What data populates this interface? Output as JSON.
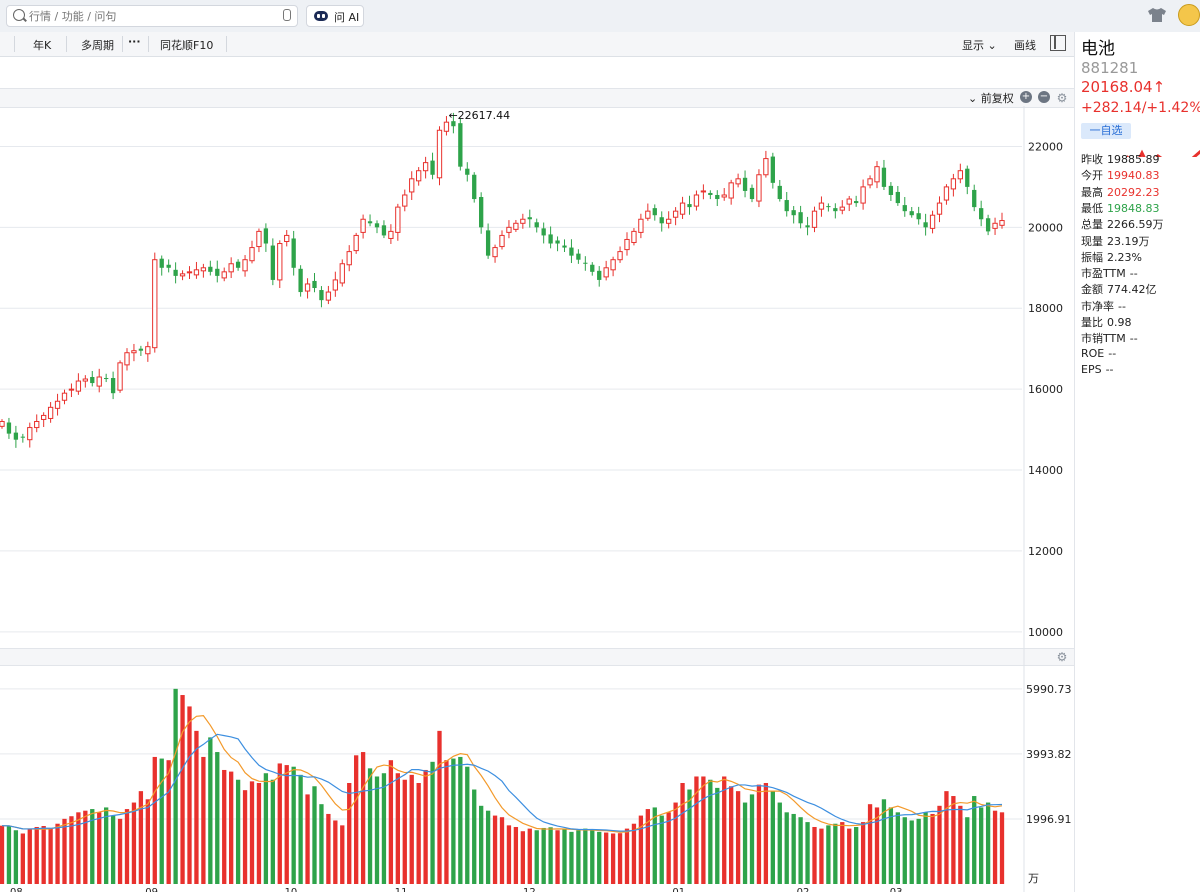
{
  "search": {
    "placeholder": "行情 / 功能 / 问句"
  },
  "ai_button": {
    "label": "问 AI"
  },
  "toolbar": {
    "items": [
      "年K",
      "多周期",
      "同花顺F10"
    ],
    "display_label": "显示",
    "draw_label": "画线"
  },
  "chart_header": {
    "adjust_label": "前复权"
  },
  "stock": {
    "name": "电池",
    "code": "881281",
    "price": "20168.04↑",
    "change": "+282.14/+1.42%",
    "favorite_label": "一自选"
  },
  "quote_rows": [
    {
      "label": "昨收",
      "value": "19885.89",
      "tone": "black"
    },
    {
      "label": "今开",
      "value": "19940.83",
      "tone": "red"
    },
    {
      "label": "最高",
      "value": "20292.23",
      "tone": "red"
    },
    {
      "label": "最低",
      "value": "19848.83",
      "tone": "green"
    },
    {
      "label": "总量",
      "value": "2266.59万",
      "tone": "black"
    },
    {
      "label": "现量",
      "value": "23.19万",
      "tone": "black"
    },
    {
      "label": "振幅",
      "value": "2.23%",
      "tone": "black"
    },
    {
      "label": "市盈TTM",
      "value": "--",
      "tone": "black"
    },
    {
      "label": "金额",
      "value": "774.42亿",
      "tone": "black"
    },
    {
      "label": "市净率",
      "value": "--",
      "tone": "black"
    },
    {
      "label": "量比",
      "value": "0.98",
      "tone": "black"
    },
    {
      "label": "市销TTM",
      "value": "--",
      "tone": "black"
    },
    {
      "label": "ROE",
      "value": "--",
      "tone": "black"
    },
    {
      "label": "EPS",
      "value": "--",
      "tone": "black"
    }
  ],
  "colors": {
    "up": "#e8312d",
    "down": "#2ea34a",
    "ma_orange": "#f39a2b",
    "ma_blue": "#3d8fe0",
    "grid": "#e6e9ee"
  },
  "chart_data": {
    "type": "candlestick",
    "price_axis": {
      "ticks": [
        22000,
        20000,
        18000,
        16000,
        14000,
        12000,
        10000
      ],
      "ylim": [
        9600,
        23000
      ]
    },
    "volume_axis": {
      "ticks": [
        "5990.73",
        "3993.82",
        "1996.91"
      ],
      "unit": "万",
      "ylim": [
        0,
        6200
      ]
    },
    "x_labels": [
      "08",
      "09",
      "10",
      "11",
      "12",
      "01",
      "02",
      "03"
    ],
    "max_marker": "←22617.44",
    "closes": [
      15200,
      14900,
      14750,
      14800,
      15050,
      15200,
      15350,
      15550,
      15700,
      15900,
      16000,
      16200,
      16250,
      16150,
      16300,
      16250,
      15900,
      16650,
      16900,
      16950,
      16950,
      17050,
      19200,
      19000,
      19000,
      18800,
      18850,
      18900,
      18950,
      19000,
      18900,
      18800,
      18900,
      19100,
      19000,
      19200,
      19500,
      19900,
      19600,
      18700,
      19600,
      19800,
      19000,
      18400,
      18600,
      18500,
      18200,
      18400,
      18700,
      19100,
      19400,
      19800,
      20200,
      20100,
      20000,
      19800,
      19900,
      20500,
      20800,
      21200,
      21400,
      21600,
      21300,
      22400,
      22600,
      22500,
      21500,
      21300,
      20700,
      20000,
      19300,
      19500,
      19800,
      20000,
      20100,
      20200,
      20200,
      20000,
      19800,
      19600,
      19600,
      19500,
      19300,
      19200,
      19100,
      18900,
      18700,
      19000,
      19200,
      19400,
      19700,
      19900,
      20200,
      20400,
      20300,
      20100,
      20200,
      20400,
      20600,
      20500,
      20800,
      20900,
      20800,
      20700,
      20800,
      21100,
      21200,
      20900,
      20700,
      21300,
      21700,
      21100,
      20700,
      20400,
      20300,
      20100,
      20000,
      20400,
      20600,
      20500,
      20400,
      20500,
      20700,
      20600,
      21000,
      21200,
      21500,
      21000,
      20800,
      20600,
      20400,
      20300,
      20200,
      20000,
      20300,
      20600,
      21000,
      21200,
      21400,
      21000,
      20500,
      20200,
      19900,
      20100,
      20168
    ],
    "volumes": [
      1790,
      1780,
      1650,
      1550,
      1680,
      1750,
      1780,
      1700,
      1850,
      2000,
      2080,
      2200,
      2250,
      2300,
      2200,
      2350,
      2100,
      2000,
      2300,
      2500,
      2850,
      2600,
      3900,
      3850,
      3800,
      5990,
      5800,
      5450,
      4700,
      3900,
      4500,
      4050,
      3500,
      3450,
      3200,
      2880,
      3150,
      3100,
      3400,
      3200,
      3700,
      3650,
      3600,
      3350,
      2750,
      3000,
      2450,
      2150,
      1950,
      1800,
      3100,
      3950,
      4050,
      3550,
      3300,
      3400,
      3800,
      3400,
      3200,
      3350,
      3100,
      3500,
      3750,
      4700,
      3800,
      3850,
      3900,
      3600,
      2900,
      2400,
      2250,
      2100,
      2050,
      1800,
      1750,
      1620,
      1700,
      1650,
      1720,
      1740,
      1650,
      1680,
      1600,
      1650,
      1700,
      1650,
      1600,
      1580,
      1550,
      1560,
      1700,
      1850,
      2100,
      2300,
      2350,
      2100,
      2200,
      2500,
      3100,
      2900,
      3300,
      3300,
      3200,
      2950,
      3300,
      3000,
      2850,
      2500,
      2750,
      3050,
      3100,
      2850,
      2500,
      2200,
      2150,
      2050,
      1900,
      1750,
      1700,
      1800,
      1850,
      1900,
      1700,
      1750,
      1900,
      2450,
      2350,
      2600,
      2350,
      2200,
      2050,
      1950,
      2000,
      2200,
      2150,
      2400,
      2850,
      2700,
      2400,
      2050,
      2700,
      2350,
      2500,
      2250,
      2200
    ]
  }
}
